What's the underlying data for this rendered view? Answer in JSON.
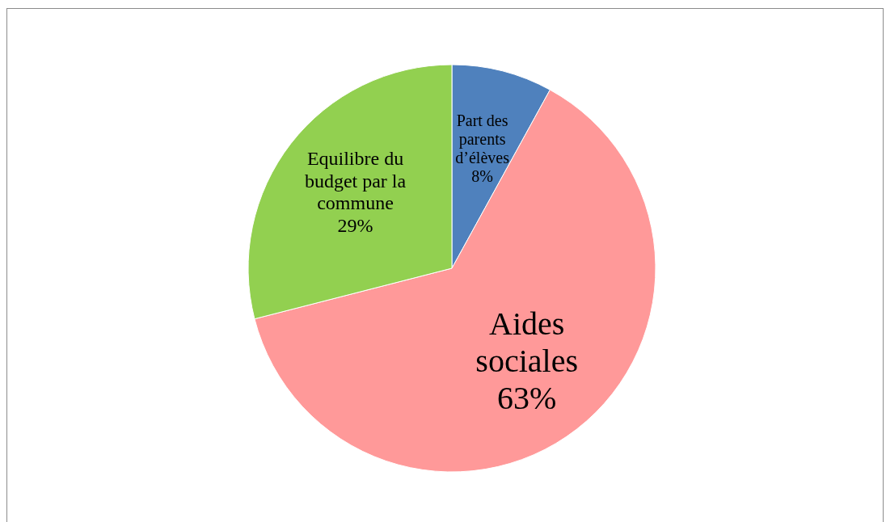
{
  "chart_data": {
    "type": "pie",
    "categories": [
      "Part des parents d’élèves",
      "Aides sociales",
      "Equilibre du budget par la commune"
    ],
    "values": [
      8,
      63,
      29
    ],
    "colors": [
      "#4f81bd",
      "#ff9999",
      "#92d050"
    ],
    "value_labels": [
      "8%",
      "63%",
      "29%"
    ]
  }
}
